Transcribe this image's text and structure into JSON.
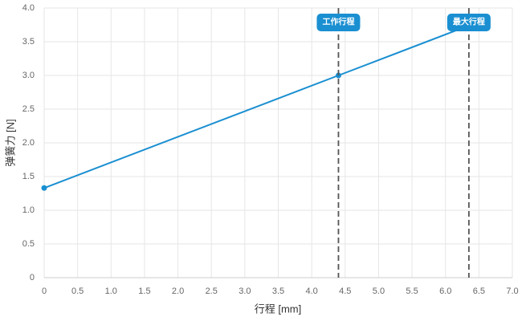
{
  "chart_data": {
    "type": "line",
    "x_label": "行程 [mm]",
    "y_label": "弹簧力 [N]",
    "x": [
      0,
      4.4,
      6.35
    ],
    "series": [
      {
        "color": "#1a8fd1",
        "values": [
          1.33,
          3.0,
          3.74
        ]
      }
    ],
    "xlim": [
      0,
      7
    ],
    "ylim": [
      0,
      4
    ],
    "xticks": [
      0,
      0.5,
      {
        "value": 1,
        "label": "1.0"
      },
      1.5,
      {
        "value": 2,
        "label": "2.0"
      },
      2.5,
      {
        "value": 3,
        "label": "3.0"
      },
      3.5,
      {
        "value": 4,
        "label": "4.0"
      },
      4.5,
      {
        "value": 5,
        "label": "5.0"
      },
      5.5,
      {
        "value": 6,
        "label": "6.0"
      },
      6.5,
      {
        "value": 7,
        "label": "7.0"
      }
    ],
    "yticks": [
      0,
      0.5,
      {
        "value": 1,
        "label": "1.0"
      },
      1.5,
      {
        "value": 2,
        "label": "2.0"
      },
      2.5,
      {
        "value": 3,
        "label": "3.0"
      },
      3.5,
      {
        "value": 4,
        "label": "4.0"
      }
    ],
    "grid": true,
    "annotations": [
      {
        "x": 4.4,
        "label": "工作行程"
      },
      {
        "x": 6.35,
        "label": "最大行程"
      }
    ],
    "annotation_color": "#1a8fd1"
  }
}
